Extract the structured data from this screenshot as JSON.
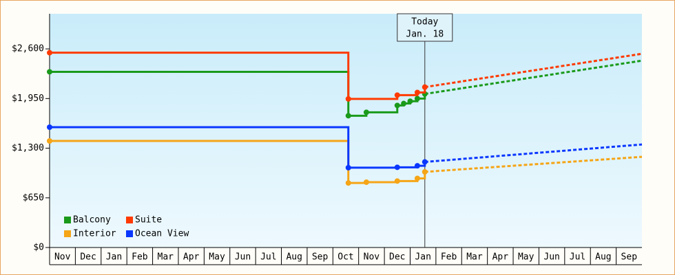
{
  "chart_data": {
    "type": "step-line",
    "xlim": [
      0,
      23
    ],
    "ylim": [
      0,
      3060
    ],
    "yticks": [
      {
        "value": 0,
        "label": "$0"
      },
      {
        "value": 650,
        "label": "$650"
      },
      {
        "value": 1300,
        "label": "$1,300"
      },
      {
        "value": 1950,
        "label": "$1,950"
      },
      {
        "value": 2600,
        "label": "$2,600"
      }
    ],
    "xticks": [
      {
        "value": 0.5,
        "label": "Nov"
      },
      {
        "value": 1.5,
        "label": "Dec"
      },
      {
        "value": 2.5,
        "label": "Jan"
      },
      {
        "value": 3.5,
        "label": "Feb"
      },
      {
        "value": 4.5,
        "label": "Mar"
      },
      {
        "value": 5.5,
        "label": "Apr"
      },
      {
        "value": 6.5,
        "label": "May"
      },
      {
        "value": 7.5,
        "label": "Jun"
      },
      {
        "value": 8.5,
        "label": "Jul"
      },
      {
        "value": 9.5,
        "label": "Aug"
      },
      {
        "value": 10.5,
        "label": "Sep"
      },
      {
        "value": 11.5,
        "label": "Oct"
      },
      {
        "value": 12.5,
        "label": "Nov"
      },
      {
        "value": 13.5,
        "label": "Dec"
      },
      {
        "value": 14.5,
        "label": "Jan"
      },
      {
        "value": 15.5,
        "label": "Feb"
      },
      {
        "value": 16.5,
        "label": "Mar"
      },
      {
        "value": 17.5,
        "label": "Apr"
      },
      {
        "value": 18.5,
        "label": "May"
      },
      {
        "value": 19.5,
        "label": "Jun"
      },
      {
        "value": 20.5,
        "label": "Jul"
      },
      {
        "value": 21.5,
        "label": "Aug"
      },
      {
        "value": 22.5,
        "label": "Sep"
      }
    ],
    "annotation": {
      "x": 14.57,
      "lines": [
        "Today",
        "Jan. 18"
      ]
    },
    "legend": "bottom-left",
    "series": [
      {
        "name": "Balcony",
        "color": "#1a9a1a",
        "x": [
          0,
          11.6,
          12.3,
          13.5,
          13.75,
          14.0,
          14.28,
          14.57
        ],
        "values": [
          2300,
          1725,
          1770,
          1860,
          1885,
          1915,
          1950,
          2010
        ],
        "forecast": {
          "x": 23,
          "value": 2446
        }
      },
      {
        "name": "Suite",
        "color": "#ff3a00",
        "x": [
          0,
          11.6,
          13.5,
          14.28,
          14.57
        ],
        "values": [
          2550,
          1945,
          1995,
          2030,
          2100
        ],
        "forecast": {
          "x": 23,
          "value": 2536
        }
      },
      {
        "name": "Interior",
        "color": "#f5a516",
        "x": [
          0,
          11.6,
          12.3,
          13.5,
          14.28,
          14.57
        ],
        "values": [
          1395,
          845,
          855,
          870,
          905,
          990
        ],
        "forecast": {
          "x": 23,
          "value": 1187
        }
      },
      {
        "name": "Ocean View",
        "color": "#0a37ff",
        "x": [
          0,
          11.6,
          13.5,
          14.28,
          14.57
        ],
        "values": [
          1575,
          1045,
          1050,
          1070,
          1120
        ],
        "forecast": {
          "x": 23,
          "value": 1349
        }
      }
    ]
  }
}
